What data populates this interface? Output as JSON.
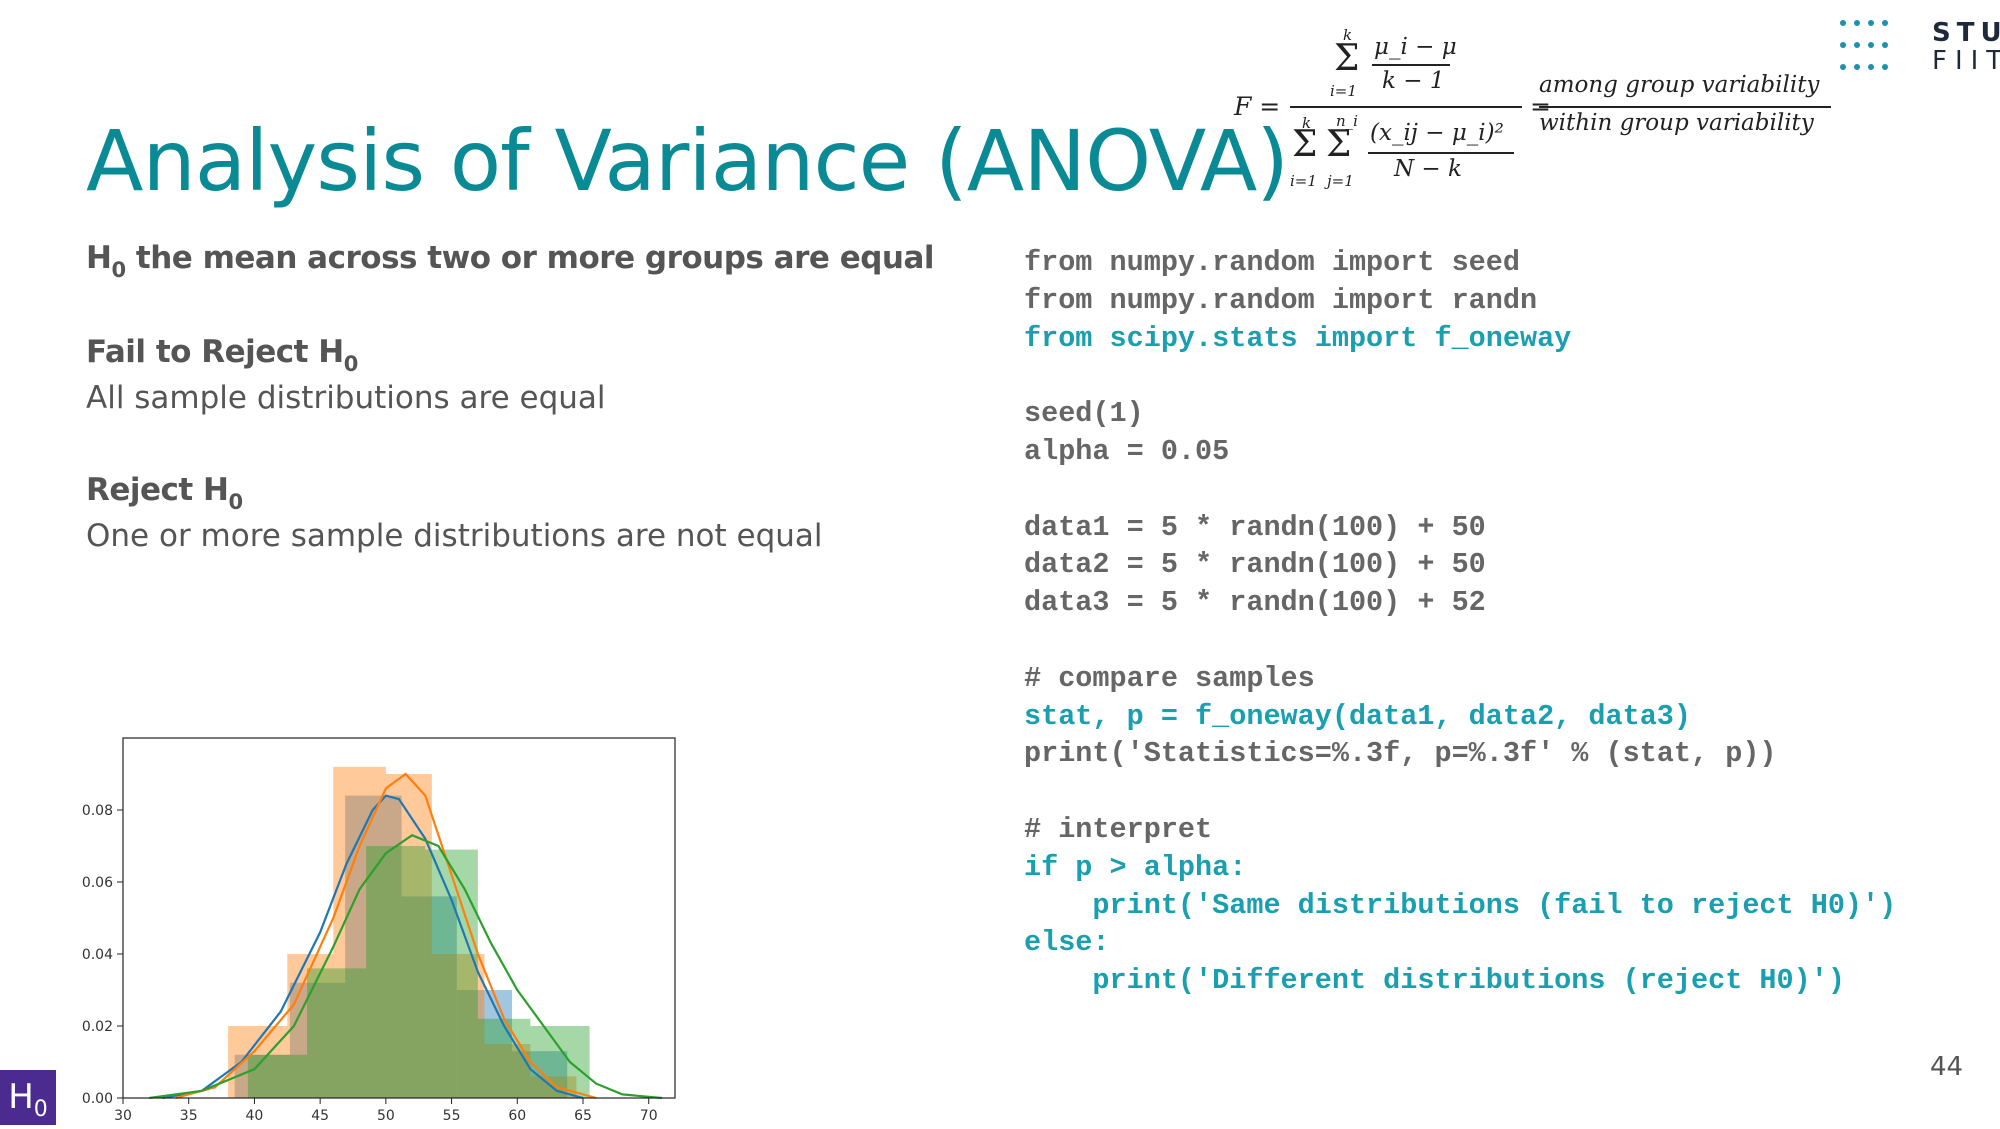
{
  "slide": {
    "title": "Analysis of Variance (ANOVA)",
    "page_number": "44"
  },
  "logo": {
    "line1": "STU",
    "line2": "FIIT"
  },
  "formula": {
    "lhs": "F =",
    "eq": "=",
    "numerator_sum_top": "k",
    "numerator_sum_bottom": "i=1",
    "numerator_top": "μ_i − μ",
    "numerator_bottom": "k − 1",
    "denominator_k": "k",
    "denominator_ni": "n_i",
    "denominator_i": "i=1",
    "denominator_j": "j=1",
    "denominator_top": "(x_ij − μ_i)²",
    "denominator_bottom": "N − k",
    "rhs_top": "among group variability",
    "rhs_bottom": "within group variability"
  },
  "hypotheses": {
    "h0_letter": "H",
    "h0_sub": "0",
    "h0_statement": " the mean across two or more groups are equal",
    "fail_label": "Fail to Reject H",
    "fail_sub": "0",
    "fail_text": "All sample distributions are equal",
    "reject_label": "Reject H",
    "reject_sub": "0",
    "reject_text": "One or more sample distributions are not equal"
  },
  "code_lines": [
    {
      "text": "from numpy.random import seed",
      "highlight": false
    },
    {
      "text": "from numpy.random import randn",
      "highlight": false
    },
    {
      "text": "from scipy.stats import f_oneway",
      "highlight": true
    },
    {
      "text": "",
      "highlight": false
    },
    {
      "text": "seed(1)",
      "highlight": false
    },
    {
      "text": "alpha = 0.05",
      "highlight": false
    },
    {
      "text": "",
      "highlight": false
    },
    {
      "text": "data1 = 5 * randn(100) + 50",
      "highlight": false
    },
    {
      "text": "data2 = 5 * randn(100) + 50",
      "highlight": false
    },
    {
      "text": "data3 = 5 * randn(100) + 52",
      "highlight": false
    },
    {
      "text": "",
      "highlight": false
    },
    {
      "text": "# compare samples",
      "highlight": false
    },
    {
      "text": "stat, p = f_oneway(data1, data2, data3)",
      "highlight": true
    },
    {
      "text": "print('Statistics=%.3f, p=%.3f' % (stat, p))",
      "highlight": false
    },
    {
      "text": "",
      "highlight": false
    },
    {
      "text": "# interpret",
      "highlight": false
    },
    {
      "text": "if p > alpha:",
      "highlight": true
    },
    {
      "text": "    print('Same distributions (fail to reject H0)')",
      "highlight": true
    },
    {
      "text": "else:",
      "highlight": true
    },
    {
      "text": "    print('Different distributions (reject H0)')",
      "highlight": true
    }
  ],
  "badge": {
    "letter": "H",
    "sub": "0"
  },
  "colors": {
    "title": "#0a8a95",
    "code_highlight": "#1a9fb0",
    "series_blue": "#1f77b4",
    "series_orange": "#ff7f0e",
    "series_green": "#2ca02c",
    "badge": "#4b2b8f"
  },
  "chart_data": {
    "type": "bar",
    "xlim": [
      30,
      72
    ],
    "ylim": [
      0,
      0.1
    ],
    "xticks": [
      "30",
      "35",
      "40",
      "45",
      "50",
      "55",
      "60",
      "65",
      "70"
    ],
    "yticks": [
      "0.00",
      "0.02",
      "0.04",
      "0.06",
      "0.08"
    ],
    "series": [
      {
        "color": "#1f77b4",
        "bins": [
          [
            38.5,
            42.7,
            0.012
          ],
          [
            42.7,
            46.9,
            0.032
          ],
          [
            46.9,
            51.2,
            0.084
          ],
          [
            51.2,
            55.4,
            0.056
          ],
          [
            55.4,
            59.6,
            0.03
          ],
          [
            59.6,
            63.8,
            0.013
          ]
        ],
        "kde": [
          [
            33,
            0
          ],
          [
            36,
            0.002
          ],
          [
            39,
            0.01
          ],
          [
            42,
            0.024
          ],
          [
            45,
            0.046
          ],
          [
            47,
            0.065
          ],
          [
            49,
            0.08
          ],
          [
            50,
            0.084
          ],
          [
            51,
            0.083
          ],
          [
            53,
            0.072
          ],
          [
            55,
            0.055
          ],
          [
            57,
            0.035
          ],
          [
            59,
            0.02
          ],
          [
            61,
            0.008
          ],
          [
            63,
            0.002
          ],
          [
            65,
            0
          ]
        ]
      },
      {
        "color": "#ff7f0e",
        "bins": [
          [
            38.0,
            42.5,
            0.02
          ],
          [
            42.5,
            46.0,
            0.04
          ],
          [
            46.0,
            50.0,
            0.092
          ],
          [
            50.0,
            53.5,
            0.09
          ],
          [
            53.5,
            57.5,
            0.04
          ],
          [
            57.5,
            61.0,
            0.015
          ],
          [
            61.0,
            64.5,
            0.006
          ]
        ],
        "kde": [
          [
            34,
            0
          ],
          [
            37,
            0.003
          ],
          [
            40,
            0.013
          ],
          [
            43,
            0.026
          ],
          [
            46,
            0.05
          ],
          [
            48,
            0.07
          ],
          [
            50,
            0.086
          ],
          [
            51.5,
            0.09
          ],
          [
            53,
            0.084
          ],
          [
            55,
            0.062
          ],
          [
            57,
            0.04
          ],
          [
            59,
            0.022
          ],
          [
            61,
            0.01
          ],
          [
            63,
            0.003
          ],
          [
            66,
            0
          ]
        ]
      },
      {
        "color": "#2ca02c",
        "bins": [
          [
            39.5,
            44.0,
            0.012
          ],
          [
            44.0,
            48.5,
            0.036
          ],
          [
            48.5,
            53.0,
            0.07
          ],
          [
            53.0,
            57.0,
            0.069
          ],
          [
            57.0,
            61.0,
            0.022
          ],
          [
            61.0,
            65.5,
            0.02
          ]
        ],
        "kde": [
          [
            32,
            0
          ],
          [
            36,
            0.002
          ],
          [
            40,
            0.008
          ],
          [
            43,
            0.02
          ],
          [
            46,
            0.042
          ],
          [
            48,
            0.058
          ],
          [
            50,
            0.068
          ],
          [
            52,
            0.073
          ],
          [
            54,
            0.07
          ],
          [
            56,
            0.058
          ],
          [
            58,
            0.043
          ],
          [
            60,
            0.03
          ],
          [
            62,
            0.02
          ],
          [
            64,
            0.01
          ],
          [
            66,
            0.004
          ],
          [
            68,
            0.001
          ],
          [
            71,
            0
          ]
        ]
      }
    ]
  }
}
